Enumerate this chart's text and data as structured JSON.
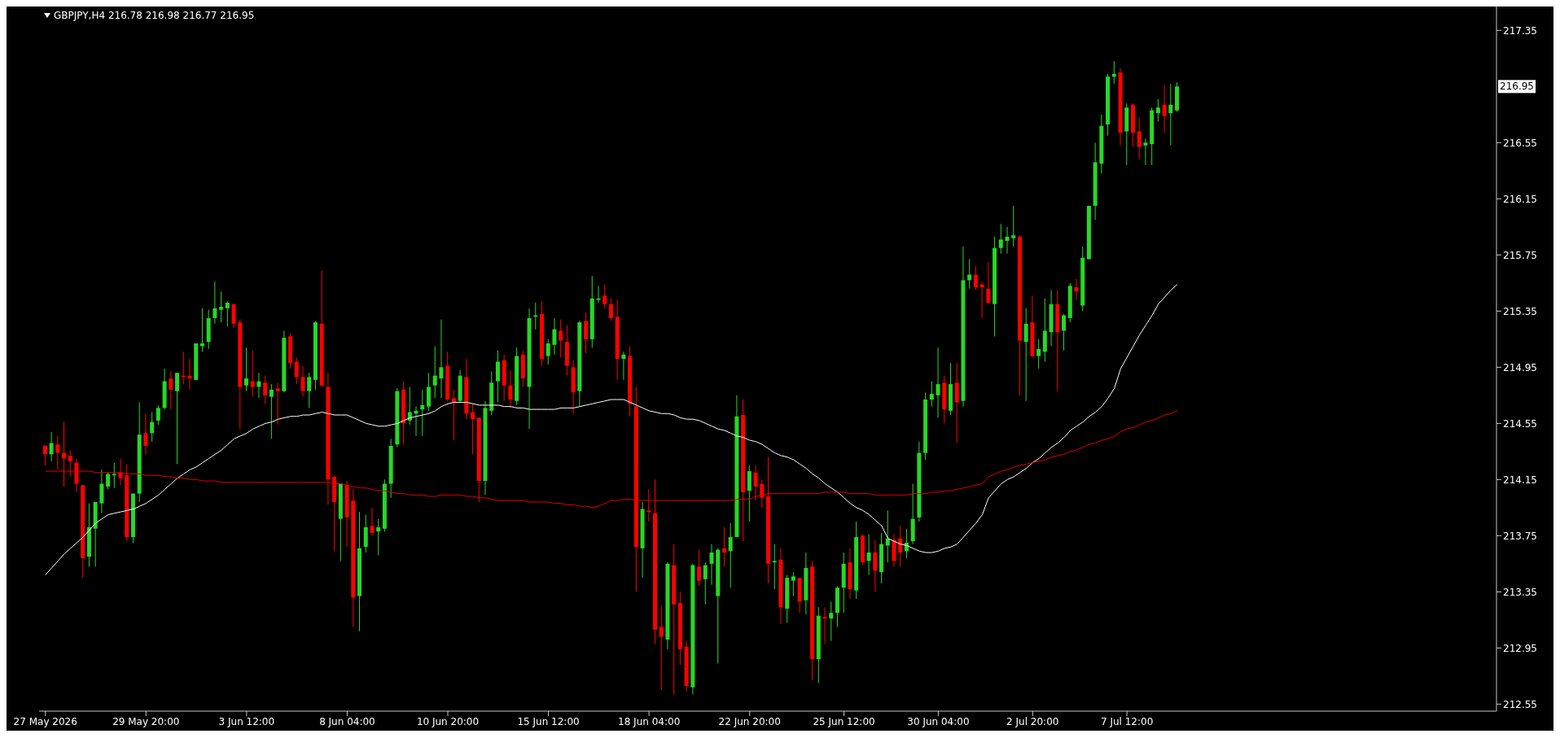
{
  "chart_data": {
    "type": "candlestick",
    "title": "GBPJPY,H4 216.78 216.98 216.77 216.95",
    "categories": [
      "27 May 2026",
      null,
      null,
      null,
      null,
      null,
      null,
      null,
      null,
      null,
      null,
      null,
      null,
      null,
      null,
      null,
      "29 May 20:00",
      null,
      null,
      null,
      null,
      null,
      null,
      null,
      null,
      null,
      null,
      null,
      null,
      null,
      null,
      null,
      "3 Jun 12:00",
      null,
      null,
      null,
      null,
      null,
      null,
      null,
      null,
      null,
      null,
      null,
      null,
      null,
      null,
      null,
      "8 Jun 04:00",
      null,
      null,
      null,
      null,
      null,
      null,
      null,
      null,
      null,
      null,
      null,
      null,
      null,
      null,
      null,
      "10 Jun 20:00",
      null,
      null,
      null,
      null,
      null,
      null,
      null,
      null,
      null,
      null,
      null,
      null,
      null,
      null,
      null,
      "15 Jun 12:00",
      null,
      null,
      null,
      null,
      null,
      null,
      null,
      null,
      null,
      null,
      null,
      null,
      null,
      null,
      null,
      "18 Jun 04:00",
      null,
      null,
      null,
      null,
      null,
      null,
      null,
      null,
      null,
      null,
      null,
      null,
      null,
      null,
      null,
      "22 Jun 20:00",
      null,
      null,
      null,
      null,
      null,
      null,
      null,
      null,
      null,
      null,
      null,
      null,
      null,
      null,
      "25 Jun 12:00",
      null,
      null,
      null,
      null,
      null,
      null,
      null,
      null,
      null,
      null,
      null,
      null,
      null,
      null,
      "30 Jun 04:00",
      null,
      null,
      null,
      null,
      null,
      null,
      null,
      null,
      null,
      null,
      null,
      null,
      null,
      null,
      "2 Jul 20:00",
      null,
      null,
      null,
      null,
      null,
      null,
      null,
      null,
      null,
      null,
      null,
      null,
      null,
      null,
      "7 Jul 12:00",
      null,
      null,
      null,
      null,
      null,
      null,
      null,
      null
    ],
    "ohlc": [
      [
        214.39,
        214.4,
        214.25,
        214.33
      ],
      [
        214.33,
        214.49,
        214.28,
        214.41
      ],
      [
        214.4,
        214.46,
        214.22,
        214.34
      ],
      [
        214.34,
        214.56,
        214.1,
        214.3
      ],
      [
        214.32,
        214.36,
        214.17,
        214.28
      ],
      [
        214.27,
        214.3,
        214.06,
        214.12
      ],
      [
        214.11,
        214.11,
        213.45,
        213.59
      ],
      [
        213.6,
        213.98,
        213.53,
        213.81
      ],
      [
        213.8,
        213.99,
        213.53,
        213.99
      ],
      [
        213.98,
        214.22,
        213.91,
        214.12
      ],
      [
        214.1,
        214.2,
        214.08,
        214.19
      ],
      [
        214.18,
        214.27,
        214.09,
        214.19
      ],
      [
        214.2,
        214.3,
        214.11,
        214.16
      ],
      [
        214.18,
        214.26,
        213.71,
        213.74
      ],
      [
        213.74,
        214.05,
        213.7,
        214.05
      ],
      [
        214.05,
        214.7,
        213.99,
        214.47
      ],
      [
        214.48,
        214.62,
        214.33,
        214.39
      ],
      [
        214.48,
        214.63,
        214.42,
        214.56
      ],
      [
        214.57,
        214.68,
        214.54,
        214.66
      ],
      [
        214.66,
        214.94,
        214.65,
        214.85
      ],
      [
        214.87,
        214.92,
        214.65,
        214.79
      ],
      [
        214.78,
        214.91,
        214.26,
        214.91
      ],
      [
        214.89,
        215.06,
        214.83,
        214.88
      ],
      [
        214.89,
        215.01,
        214.79,
        214.87
      ],
      [
        214.86,
        215.12,
        214.86,
        215.12
      ],
      [
        215.1,
        215.37,
        215.06,
        215.12
      ],
      [
        215.13,
        215.36,
        215.08,
        215.3
      ],
      [
        215.3,
        215.56,
        215.26,
        215.37
      ],
      [
        215.36,
        215.49,
        215.27,
        215.38
      ],
      [
        215.37,
        215.42,
        215.24,
        215.41
      ],
      [
        215.4,
        215.4,
        215.23,
        215.26
      ],
      [
        215.27,
        215.29,
        214.51,
        214.81
      ],
      [
        214.82,
        215.09,
        214.78,
        214.87
      ],
      [
        214.85,
        215.07,
        214.74,
        214.81
      ],
      [
        214.81,
        214.91,
        214.73,
        214.85
      ],
      [
        214.84,
        214.89,
        214.69,
        214.75
      ],
      [
        214.74,
        214.83,
        214.44,
        214.79
      ],
      [
        214.8,
        214.84,
        214.54,
        214.78
      ],
      [
        214.78,
        215.21,
        214.77,
        215.16
      ],
      [
        215.17,
        215.19,
        214.94,
        214.98
      ],
      [
        214.99,
        215.02,
        214.83,
        214.88
      ],
      [
        214.88,
        214.96,
        214.74,
        214.78
      ],
      [
        214.78,
        214.91,
        214.66,
        214.88
      ],
      [
        214.86,
        215.28,
        214.79,
        215.27
      ],
      [
        215.26,
        215.64,
        214.81,
        214.82
      ],
      [
        214.81,
        214.91,
        213.97,
        214.15
      ],
      [
        214.17,
        214.18,
        213.64,
        213.99
      ],
      [
        213.87,
        214.12,
        213.57,
        214.12
      ],
      [
        214.11,
        214.14,
        213.67,
        213.88
      ],
      [
        214.0,
        214.08,
        213.1,
        213.31
      ],
      [
        213.32,
        213.92,
        213.07,
        213.66
      ],
      [
        213.67,
        213.9,
        213.63,
        213.81
      ],
      [
        213.82,
        213.95,
        213.75,
        213.77
      ],
      [
        213.78,
        213.87,
        213.61,
        213.81
      ],
      [
        213.8,
        214.15,
        213.78,
        214.12
      ],
      [
        214.12,
        214.44,
        214.02,
        214.39
      ],
      [
        214.4,
        214.8,
        214.38,
        214.78
      ],
      [
        214.79,
        214.85,
        214.4,
        214.55
      ],
      [
        214.57,
        214.81,
        214.54,
        214.63
      ],
      [
        214.62,
        214.67,
        214.46,
        214.64
      ],
      [
        214.65,
        214.79,
        214.46,
        214.68
      ],
      [
        214.67,
        214.91,
        214.64,
        214.81
      ],
      [
        214.82,
        215.1,
        214.73,
        214.89
      ],
      [
        214.87,
        215.29,
        214.73,
        214.95
      ],
      [
        214.96,
        215.06,
        214.71,
        214.72
      ],
      [
        214.73,
        214.79,
        214.43,
        214.7
      ],
      [
        214.71,
        214.93,
        214.7,
        214.89
      ],
      [
        214.88,
        215.01,
        214.58,
        214.62
      ],
      [
        214.63,
        214.69,
        214.33,
        214.58
      ],
      [
        214.59,
        214.59,
        213.99,
        214.14
      ],
      [
        214.14,
        214.71,
        214.04,
        214.66
      ],
      [
        214.64,
        214.92,
        214.61,
        214.84
      ],
      [
        214.85,
        215.07,
        214.7,
        214.99
      ],
      [
        215.0,
        215.04,
        214.71,
        214.82
      ],
      [
        214.82,
        214.93,
        214.66,
        214.72
      ],
      [
        214.71,
        215.09,
        214.68,
        215.03
      ],
      [
        215.04,
        215.07,
        214.81,
        214.87
      ],
      [
        214.81,
        215.37,
        214.51,
        215.3
      ],
      [
        215.31,
        215.41,
        215.22,
        215.32
      ],
      [
        215.33,
        215.42,
        214.96,
        215.01
      ],
      [
        215.03,
        215.15,
        214.97,
        215.12
      ],
      [
        215.11,
        215.3,
        215.04,
        215.22
      ],
      [
        215.21,
        215.29,
        215.02,
        215.14
      ],
      [
        215.13,
        215.25,
        214.89,
        214.96
      ],
      [
        214.95,
        215.0,
        214.62,
        214.77
      ],
      [
        214.78,
        215.28,
        214.67,
        215.27
      ],
      [
        215.28,
        215.34,
        215.05,
        215.15
      ],
      [
        215.15,
        215.6,
        215.09,
        215.44
      ],
      [
        215.43,
        215.53,
        215.41,
        215.44
      ],
      [
        215.46,
        215.54,
        215.37,
        215.4
      ],
      [
        215.4,
        215.44,
        215.28,
        215.3
      ],
      [
        215.31,
        215.43,
        214.86,
        215.01
      ],
      [
        215.01,
        215.06,
        214.86,
        215.04
      ],
      [
        215.03,
        215.1,
        214.6,
        214.69
      ],
      [
        214.67,
        214.81,
        213.35,
        213.67
      ],
      [
        213.66,
        213.99,
        213.45,
        213.94
      ],
      [
        213.93,
        214.08,
        213.85,
        213.92
      ],
      [
        213.91,
        214.15,
        212.98,
        213.08
      ],
      [
        213.1,
        213.25,
        212.65,
        213.03
      ],
      [
        213.01,
        213.56,
        212.94,
        213.55
      ],
      [
        213.54,
        213.69,
        212.62,
        213.26
      ],
      [
        213.27,
        213.35,
        212.83,
        212.94
      ],
      [
        212.96,
        213.0,
        212.64,
        212.68
      ],
      [
        212.67,
        213.55,
        212.62,
        213.54
      ],
      [
        213.53,
        213.65,
        213.39,
        213.43
      ],
      [
        213.44,
        213.56,
        213.26,
        213.54
      ],
      [
        213.55,
        213.69,
        213.4,
        213.63
      ],
      [
        213.32,
        213.66,
        212.84,
        213.65
      ],
      [
        213.66,
        213.81,
        213.53,
        213.63
      ],
      [
        213.64,
        213.84,
        213.38,
        213.74
      ],
      [
        213.74,
        214.75,
        213.74,
        214.6
      ],
      [
        214.61,
        214.72,
        213.71,
        214.06
      ],
      [
        214.07,
        214.25,
        213.85,
        214.21
      ],
      [
        214.2,
        214.25,
        214.0,
        214.1
      ],
      [
        214.12,
        214.15,
        213.95,
        214.02
      ],
      [
        214.03,
        214.31,
        213.41,
        213.55
      ],
      [
        213.56,
        213.69,
        213.37,
        213.57
      ],
      [
        213.58,
        213.66,
        213.12,
        213.24
      ],
      [
        213.23,
        213.47,
        213.13,
        213.45
      ],
      [
        213.43,
        213.49,
        213.32,
        213.46
      ],
      [
        213.45,
        213.45,
        213.2,
        213.28
      ],
      [
        213.29,
        213.63,
        213.19,
        213.52
      ],
      [
        213.53,
        213.57,
        212.72,
        212.87
      ],
      [
        212.87,
        213.24,
        212.7,
        213.18
      ],
      [
        213.17,
        213.24,
        212.98,
        213.16
      ],
      [
        213.16,
        213.28,
        213.0,
        213.2
      ],
      [
        213.2,
        213.39,
        213.1,
        213.38
      ],
      [
        213.38,
        213.63,
        213.2,
        213.55
      ],
      [
        213.56,
        213.66,
        213.3,
        213.37
      ],
      [
        213.36,
        213.85,
        213.3,
        213.74
      ],
      [
        213.75,
        213.76,
        213.54,
        213.56
      ],
      [
        213.57,
        213.76,
        213.47,
        213.63
      ],
      [
        213.63,
        213.72,
        213.35,
        213.5
      ],
      [
        213.49,
        213.77,
        213.41,
        213.69
      ],
      [
        213.68,
        213.93,
        213.56,
        213.73
      ],
      [
        213.72,
        213.76,
        213.53,
        213.57
      ],
      [
        213.73,
        213.82,
        213.53,
        213.63
      ],
      [
        213.64,
        213.8,
        213.59,
        213.7
      ],
      [
        213.71,
        214.12,
        213.69,
        213.87
      ],
      [
        213.88,
        214.42,
        213.85,
        214.34
      ],
      [
        214.34,
        214.77,
        214.29,
        214.72
      ],
      [
        214.72,
        214.85,
        214.67,
        214.76
      ],
      [
        214.75,
        215.09,
        214.59,
        214.83
      ],
      [
        214.84,
        214.89,
        214.55,
        214.65
      ],
      [
        214.64,
        214.98,
        214.61,
        214.83
      ],
      [
        214.84,
        214.98,
        214.41,
        214.7
      ],
      [
        214.71,
        215.81,
        214.67,
        215.57
      ],
      [
        215.57,
        215.72,
        215.51,
        215.61
      ],
      [
        215.61,
        215.67,
        215.5,
        215.52
      ],
      [
        215.54,
        215.56,
        215.3,
        215.52
      ],
      [
        215.51,
        215.7,
        215.4,
        215.41
      ],
      [
        215.4,
        215.88,
        215.17,
        215.8
      ],
      [
        215.8,
        215.97,
        215.76,
        215.86
      ],
      [
        215.85,
        215.95,
        215.76,
        215.88
      ],
      [
        215.87,
        216.1,
        215.81,
        215.89
      ],
      [
        215.88,
        215.89,
        214.75,
        215.14
      ],
      [
        215.13,
        215.37,
        214.71,
        215.26
      ],
      [
        215.27,
        215.46,
        215.02,
        215.03
      ],
      [
        215.03,
        215.15,
        214.94,
        215.08
      ],
      [
        215.06,
        215.44,
        214.99,
        215.21
      ],
      [
        215.2,
        215.5,
        215.1,
        215.4
      ],
      [
        215.4,
        215.5,
        214.78,
        215.2
      ],
      [
        215.21,
        215.33,
        215.07,
        215.32
      ],
      [
        215.3,
        215.55,
        215.27,
        215.53
      ],
      [
        215.52,
        215.58,
        215.43,
        215.49
      ],
      [
        215.39,
        215.81,
        215.35,
        215.73
      ],
      [
        215.72,
        216.1,
        215.72,
        216.1
      ],
      [
        216.1,
        216.55,
        216.0,
        216.41
      ],
      [
        216.4,
        216.75,
        216.33,
        216.67
      ],
      [
        216.68,
        217.04,
        216.6,
        217.02
      ],
      [
        217.02,
        217.13,
        216.97,
        217.04
      ],
      [
        217.05,
        217.08,
        216.53,
        216.62
      ],
      [
        216.63,
        216.83,
        216.39,
        216.8
      ],
      [
        216.82,
        216.83,
        216.52,
        216.62
      ],
      [
        216.63,
        216.73,
        216.43,
        216.52
      ],
      [
        216.53,
        216.58,
        216.39,
        216.55
      ],
      [
        216.54,
        216.8,
        216.39,
        216.78
      ],
      [
        216.76,
        216.86,
        216.7,
        216.8
      ],
      [
        216.82,
        216.96,
        216.62,
        216.74
      ],
      [
        216.76,
        216.97,
        216.53,
        216.82
      ],
      [
        216.78,
        216.98,
        216.77,
        216.95
      ]
    ],
    "colors": [
      "#ff0000",
      "#26d826",
      "#ff0000",
      "#ff0000",
      "#ff0000",
      "#ff0000",
      "#ff0000",
      "#26d826",
      "#26d826",
      "#26d826",
      "#26d826",
      "#26d826",
      "#ff0000",
      "#ff0000",
      "#26d826",
      "#26d826",
      "#ff0000",
      "#26d826",
      "#26d826",
      "#26d826",
      "#ff0000",
      "#26d826",
      "#ff0000",
      "#ff0000",
      "#26d826",
      "#26d826",
      "#26d826",
      "#26d826",
      "#26d826",
      "#26d826",
      "#ff0000",
      "#ff0000",
      "#26d826",
      "#ff0000",
      "#26d826",
      "#ff0000",
      "#26d826",
      "#ff0000",
      "#26d826",
      "#ff0000",
      "#ff0000",
      "#ff0000",
      "#26d826",
      "#26d826",
      "#ff0000",
      "#ff0000",
      "#ff0000",
      "#26d826",
      "#ff0000",
      "#ff0000",
      "#26d826",
      "#26d826",
      "#ff0000",
      "#26d826",
      "#26d826",
      "#26d826",
      "#26d826",
      "#ff0000",
      "#26d826",
      "#26d826",
      "#26d826",
      "#26d826",
      "#26d826",
      "#26d826",
      "#ff0000",
      "#ff0000",
      "#26d826",
      "#ff0000",
      "#ff0000",
      "#ff0000",
      "#26d826",
      "#26d826",
      "#26d826",
      "#ff0000",
      "#ff0000",
      "#26d826",
      "#ff0000",
      "#26d826",
      "#26d826",
      "#ff0000",
      "#26d826",
      "#26d826",
      "#ff0000",
      "#ff0000",
      "#ff0000",
      "#26d826",
      "#ff0000",
      "#26d826",
      "#26d826",
      "#ff0000",
      "#ff0000",
      "#ff0000",
      "#26d826",
      "#ff0000",
      "#ff0000",
      "#26d826",
      "#ff0000",
      "#ff0000",
      "#ff0000",
      "#26d826",
      "#ff0000",
      "#ff0000",
      "#ff0000",
      "#26d826",
      "#ff0000",
      "#26d826",
      "#26d826",
      "#26d826",
      "#ff0000",
      "#26d826",
      "#26d826",
      "#ff0000",
      "#26d826",
      "#ff0000",
      "#ff0000",
      "#ff0000",
      "#26d826",
      "#ff0000",
      "#26d826",
      "#26d826",
      "#ff0000",
      "#26d826",
      "#ff0000",
      "#26d826",
      "#ff0000",
      "#26d826",
      "#26d826",
      "#26d826",
      "#ff0000",
      "#26d826",
      "#ff0000",
      "#26d826",
      "#ff0000",
      "#26d826",
      "#26d826",
      "#ff0000",
      "#ff0000",
      "#26d826",
      "#26d826",
      "#26d826",
      "#26d826",
      "#26d826",
      "#26d826",
      "#ff0000",
      "#26d826",
      "#ff0000",
      "#26d826",
      "#26d826",
      "#ff0000",
      "#ff0000",
      "#ff0000",
      "#26d826",
      "#26d826",
      "#26d826",
      "#26d826",
      "#ff0000",
      "#26d826",
      "#ff0000",
      "#26d826",
      "#26d826",
      "#26d826",
      "#ff0000",
      "#26d826",
      "#26d826",
      "#ff0000",
      "#26d826",
      "#26d826",
      "#26d826",
      "#26d826",
      "#26d826",
      "#26d826",
      "#ff0000",
      "#26d826",
      "#ff0000",
      "#ff0000",
      "#26d826",
      "#26d826",
      "#26d826",
      "#ff0000",
      "#26d826",
      "#26d826"
    ],
    "series": [
      {
        "type": "line",
        "color": "#ffffff",
        "values": [
          213.47,
          213.52,
          213.57,
          213.62,
          213.66,
          213.7,
          213.74,
          213.79,
          213.84,
          213.87,
          213.9,
          213.91,
          213.92,
          213.93,
          213.94,
          213.96,
          213.98,
          214.01,
          214.04,
          214.08,
          214.12,
          214.16,
          214.19,
          214.22,
          214.24,
          214.27,
          214.3,
          214.33,
          214.36,
          214.4,
          214.44,
          214.46,
          214.48,
          214.51,
          214.53,
          214.55,
          214.56,
          214.58,
          214.59,
          214.6,
          214.6,
          214.61,
          214.61,
          214.62,
          214.63,
          214.62,
          214.61,
          214.61,
          214.61,
          214.59,
          214.57,
          214.55,
          214.54,
          214.53,
          214.53,
          214.54,
          214.55,
          214.57,
          214.59,
          214.6,
          214.61,
          214.62,
          214.64,
          214.67,
          214.69,
          214.7,
          214.7,
          214.7,
          214.69,
          214.68,
          214.68,
          214.68,
          214.68,
          214.67,
          214.67,
          214.66,
          214.66,
          214.65,
          214.65,
          214.65,
          214.65,
          214.65,
          214.66,
          214.66,
          214.66,
          214.67,
          214.68,
          214.69,
          214.7,
          214.71,
          214.72,
          214.72,
          214.72,
          214.7,
          214.68,
          214.66,
          214.64,
          214.63,
          214.62,
          214.62,
          214.61,
          214.59,
          214.58,
          214.58,
          214.57,
          214.55,
          214.53,
          214.51,
          214.5,
          214.48,
          214.46,
          214.45,
          214.43,
          214.42,
          214.4,
          214.37,
          214.34,
          214.32,
          214.31,
          214.29,
          214.26,
          214.23,
          214.19,
          214.16,
          214.12,
          214.09,
          214.06,
          214.02,
          213.98,
          213.95,
          213.93,
          213.9,
          213.86,
          213.82,
          213.73,
          213.71,
          213.69,
          213.68,
          213.66,
          213.64,
          213.63,
          213.63,
          213.64,
          213.66,
          213.67,
          213.69,
          213.74,
          213.79,
          213.84,
          213.9,
          214.02,
          214.07,
          214.12,
          214.15,
          214.17,
          214.2,
          214.23,
          214.27,
          214.3,
          214.34,
          214.38,
          214.41,
          214.45,
          214.5,
          214.53,
          214.56,
          214.6,
          214.63,
          214.67,
          214.73,
          214.8,
          214.94,
          215.02,
          215.1,
          215.18,
          215.25,
          215.32,
          215.4,
          215.45,
          215.5,
          215.54
        ]
      },
      {
        "type": "line",
        "color": "#e00000",
        "values": [
          214.21,
          214.21,
          214.21,
          214.21,
          214.21,
          214.21,
          214.21,
          214.21,
          214.2,
          214.2,
          214.2,
          214.2,
          214.2,
          214.19,
          214.19,
          214.19,
          214.18,
          214.18,
          214.18,
          214.17,
          214.17,
          214.16,
          214.16,
          214.15,
          214.15,
          214.14,
          214.14,
          214.14,
          214.13,
          214.13,
          214.13,
          214.13,
          214.13,
          214.13,
          214.13,
          214.13,
          214.13,
          214.13,
          214.13,
          214.13,
          214.13,
          214.13,
          214.13,
          214.13,
          214.13,
          214.13,
          214.12,
          214.12,
          214.11,
          214.1,
          214.09,
          214.09,
          214.08,
          214.07,
          214.07,
          214.06,
          214.05,
          214.05,
          214.04,
          214.04,
          214.04,
          214.03,
          214.03,
          214.04,
          214.04,
          214.04,
          214.04,
          214.03,
          214.03,
          214.02,
          214.02,
          214.01,
          214.0,
          214.0,
          214.0,
          214.0,
          214.0,
          213.99,
          213.99,
          213.99,
          213.99,
          213.98,
          213.98,
          213.97,
          213.97,
          213.96,
          213.96,
          213.95,
          213.96,
          213.98,
          214.0,
          214.0,
          214.01,
          214.01,
          214.0,
          214.0,
          214.0,
          214.0,
          214.0,
          214.0,
          214.0,
          214.0,
          214.0,
          214.0,
          214.0,
          214.0,
          214.0,
          214.0,
          214.0,
          214.0,
          214.01,
          214.01,
          214.01,
          214.03,
          214.04,
          214.05,
          214.05,
          214.05,
          214.05,
          214.05,
          214.05,
          214.05,
          214.05,
          214.05,
          214.06,
          214.06,
          214.06,
          214.06,
          214.05,
          214.05,
          214.05,
          214.05,
          214.04,
          214.04,
          214.04,
          214.04,
          214.04,
          214.04,
          214.05,
          214.05,
          214.05,
          214.06,
          214.06,
          214.07,
          214.07,
          214.08,
          214.09,
          214.1,
          214.11,
          214.12,
          214.17,
          214.19,
          214.21,
          214.22,
          214.24,
          214.25,
          214.26,
          214.27,
          214.28,
          214.29,
          214.31,
          214.32,
          214.33,
          214.35,
          214.36,
          214.38,
          214.4,
          214.41,
          214.43,
          214.44,
          214.46,
          214.49,
          214.51,
          214.52,
          214.54,
          214.56,
          214.57,
          214.59,
          214.61,
          214.62,
          214.64
        ]
      }
    ],
    "ylim": [
      212.5,
      217.52
    ],
    "yticks": [
      217.35,
      216.55,
      216.15,
      215.75,
      215.35,
      214.95,
      214.55,
      214.15,
      213.75,
      213.35,
      212.95,
      212.55
    ],
    "annotations": [
      "216.95"
    ]
  }
}
